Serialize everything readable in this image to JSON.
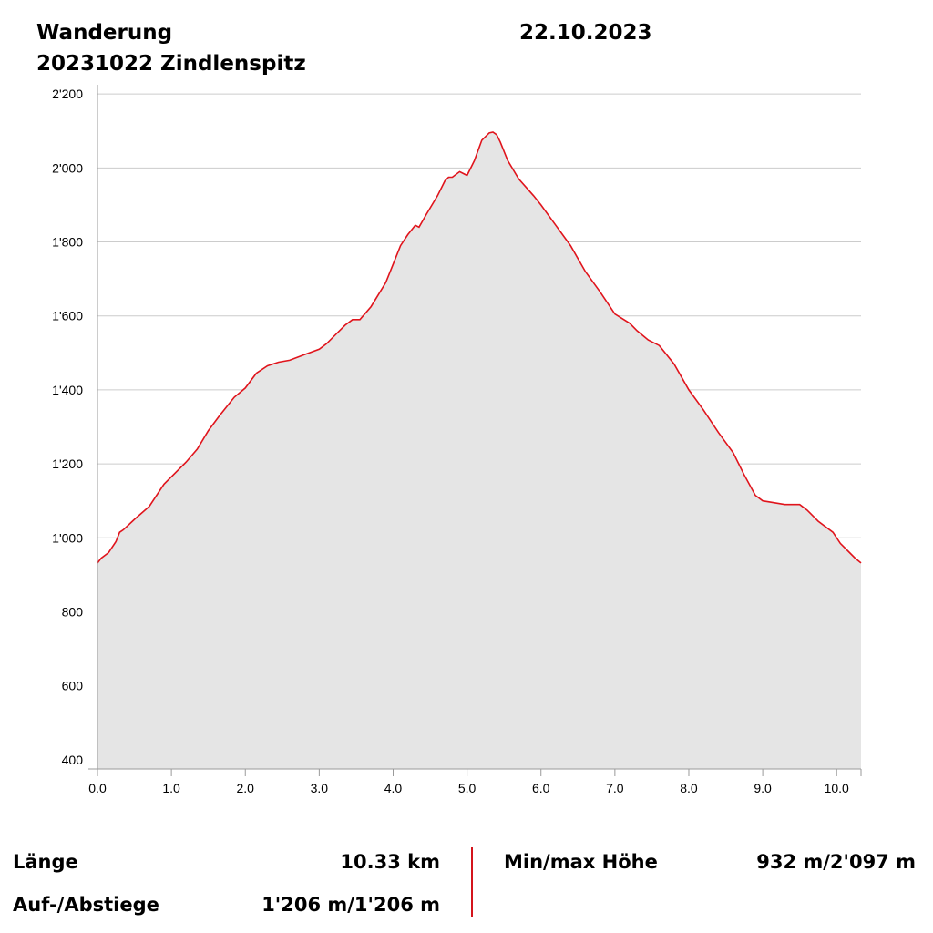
{
  "header": {
    "activity": "Wanderung",
    "date": "22.10.2023",
    "tour_name": "20231022 Zindlenspitz"
  },
  "chart_data": {
    "type": "area",
    "xlabel": "",
    "ylabel": "",
    "xlim": [
      0,
      10.33
    ],
    "ylim": [
      375,
      2225
    ],
    "x_ticks": [
      {
        "value": 0,
        "label": "0.0"
      },
      {
        "value": 1,
        "label": "1.0"
      },
      {
        "value": 2,
        "label": "2.0"
      },
      {
        "value": 3,
        "label": "3.0"
      },
      {
        "value": 4,
        "label": "4.0"
      },
      {
        "value": 5,
        "label": "5.0"
      },
      {
        "value": 6,
        "label": "6.0"
      },
      {
        "value": 7,
        "label": "7.0"
      },
      {
        "value": 8,
        "label": "8.0"
      },
      {
        "value": 9,
        "label": "9.0"
      },
      {
        "value": 10,
        "label": "10.0"
      }
    ],
    "y_ticks": [
      {
        "value": 400,
        "label": "400"
      },
      {
        "value": 600,
        "label": "600"
      },
      {
        "value": 800,
        "label": "800"
      },
      {
        "value": 1000,
        "label": "1'000"
      },
      {
        "value": 1200,
        "label": "1'200"
      },
      {
        "value": 1400,
        "label": "1'400"
      },
      {
        "value": 1600,
        "label": "1'600"
      },
      {
        "value": 1800,
        "label": "1'800"
      },
      {
        "value": 2000,
        "label": "2'000"
      },
      {
        "value": 2200,
        "label": "2'200"
      }
    ],
    "grid": true,
    "line_color": "#e0141c",
    "fill_color": "#e5e5e5",
    "grid_color": "#cccccc",
    "series": [
      {
        "x": [
          0.0,
          0.05,
          0.15,
          0.25,
          0.3,
          0.35,
          0.5,
          0.7,
          0.9,
          1.0,
          1.2,
          1.35,
          1.5,
          1.65,
          1.85,
          2.0,
          2.15,
          2.3,
          2.45,
          2.6,
          2.8,
          3.0,
          3.1,
          3.2,
          3.35,
          3.45,
          3.55,
          3.7,
          3.9,
          4.0,
          4.1,
          4.2,
          4.3,
          4.35,
          4.45,
          4.6,
          4.7,
          4.75,
          4.8,
          4.9,
          5.0,
          5.1,
          5.2,
          5.3,
          5.35,
          5.4,
          5.45,
          5.55,
          5.7,
          5.9,
          6.0,
          6.2,
          6.4,
          6.6,
          6.8,
          7.0,
          7.2,
          7.3,
          7.45,
          7.6,
          7.8,
          8.0,
          8.2,
          8.4,
          8.6,
          8.75,
          8.9,
          9.0,
          9.15,
          9.3,
          9.5,
          9.6,
          9.75,
          9.95,
          10.05,
          10.15,
          10.25,
          10.33
        ],
        "y": [
          932,
          945,
          960,
          990,
          1015,
          1022,
          1050,
          1085,
          1145,
          1165,
          1205,
          1240,
          1290,
          1330,
          1380,
          1405,
          1445,
          1465,
          1475,
          1480,
          1495,
          1510,
          1525,
          1545,
          1575,
          1590,
          1590,
          1625,
          1690,
          1740,
          1790,
          1820,
          1845,
          1840,
          1875,
          1925,
          1965,
          1975,
          1975,
          1990,
          1980,
          2020,
          2075,
          2095,
          2097,
          2090,
          2070,
          2020,
          1970,
          1925,
          1900,
          1845,
          1790,
          1720,
          1665,
          1605,
          1580,
          1560,
          1535,
          1520,
          1470,
          1400,
          1345,
          1285,
          1230,
          1170,
          1115,
          1100,
          1095,
          1090,
          1090,
          1075,
          1045,
          1015,
          985,
          965,
          945,
          932
        ]
      }
    ]
  },
  "stats": {
    "length_label": "Länge",
    "length_value": "10.33 km",
    "ascent_label": "Auf-/Abstiege",
    "ascent_value": "1'206 m/1'206 m",
    "minmax_label": "Min/max Höhe",
    "minmax_value": "932 m/2'097 m"
  }
}
